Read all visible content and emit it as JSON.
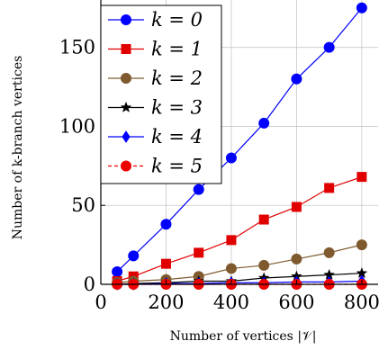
{
  "chart_data": {
    "type": "line",
    "xlabel": "Number of vertices |𝒱|",
    "ylabel": "Number of k-branch vertices",
    "xlim": [
      0,
      850
    ],
    "ylim": [
      0,
      180
    ],
    "xticks": [
      0,
      200,
      400,
      600,
      800
    ],
    "yticks": [
      0,
      50,
      100,
      150
    ],
    "grid": true,
    "legend_position": "top-left",
    "x": [
      50,
      100,
      200,
      300,
      400,
      500,
      600,
      700,
      800
    ],
    "series": [
      {
        "name": "k = 0",
        "color": "#0000ff",
        "marker": "circle",
        "dash": false,
        "values": [
          8,
          18,
          38,
          60,
          80,
          102,
          130,
          150,
          175
        ]
      },
      {
        "name": "k = 1",
        "color": "#e00000",
        "marker": "square",
        "dash": false,
        "values": [
          2,
          5,
          13,
          20,
          28,
          41,
          49,
          61,
          68
        ]
      },
      {
        "name": "k = 2",
        "color": "#7f5a2e",
        "marker": "circle",
        "dash": false,
        "values": [
          1,
          2,
          3,
          5,
          10,
          12,
          16,
          20,
          25
        ]
      },
      {
        "name": "k = 3",
        "color": "#000000",
        "marker": "star",
        "dash": false,
        "values": [
          0,
          0.5,
          1,
          2,
          2,
          4,
          5,
          6,
          7
        ]
      },
      {
        "name": "k = 4",
        "color": "#0000ff",
        "marker": "diamond",
        "dash": false,
        "values": [
          0,
          0,
          0.5,
          0.5,
          1,
          1,
          1.5,
          1.5,
          2
        ]
      },
      {
        "name": "k = 5",
        "color": "#ee0000",
        "marker": "circle",
        "dash": true,
        "values": [
          0,
          0,
          0,
          0,
          0,
          0,
          0,
          0,
          0
        ]
      }
    ]
  }
}
